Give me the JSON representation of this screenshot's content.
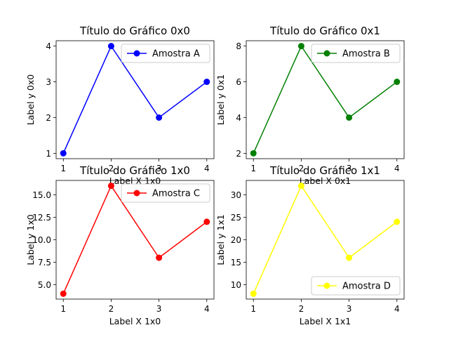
{
  "chart_data": [
    {
      "type": "line",
      "title": "Título do Gráfico 0x0",
      "xlabel": "Label X 1x0",
      "ylabel": "Label y 0x0",
      "x": [
        1,
        2,
        3,
        4
      ],
      "xticks": [
        "1",
        "2",
        "3",
        "4"
      ],
      "yticks": [
        1,
        2,
        3,
        4
      ],
      "ytick_labels": [
        "1",
        "2",
        "3",
        "4"
      ],
      "ylim": [
        0.85,
        4.15
      ],
      "series": [
        {
          "name": "Amostra A",
          "values": [
            1,
            4,
            2,
            3
          ],
          "color": "#0000ff"
        }
      ],
      "legend": "upper right",
      "grid": false
    },
    {
      "type": "line",
      "title": "Título do Gráfico 0x1",
      "xlabel": "Label X 0x1",
      "ylabel": "Label y 0x1",
      "x": [
        1,
        2,
        3,
        4
      ],
      "xticks": [
        "1",
        "2",
        "3",
        "4"
      ],
      "yticks": [
        2,
        4,
        6,
        8
      ],
      "ytick_labels": [
        "2",
        "4",
        "6",
        "8"
      ],
      "ylim": [
        1.7,
        8.3
      ],
      "series": [
        {
          "name": "Amostra B",
          "values": [
            2,
            8,
            4,
            6
          ],
          "color": "#008000"
        }
      ],
      "legend": "upper right",
      "grid": false
    },
    {
      "type": "line",
      "title": "Título do Gráfico 1x0",
      "xlabel": "Label X 1x0",
      "ylabel": "Label y 1x0",
      "x": [
        1,
        2,
        3,
        4
      ],
      "xticks": [
        "1",
        "2",
        "3",
        "4"
      ],
      "yticks": [
        5,
        7.5,
        10,
        12.5,
        15
      ],
      "ytick_labels": [
        "5.0",
        "7.5",
        "10.0",
        "12.5",
        "15.0"
      ],
      "ylim": [
        3.4,
        16.6
      ],
      "series": [
        {
          "name": "Amostra C",
          "values": [
            4,
            16,
            8,
            12
          ],
          "color": "#ff0000"
        }
      ],
      "legend": "upper right",
      "grid": false
    },
    {
      "type": "line",
      "title": "Título do Gráfico 1x1",
      "xlabel": "Label X 1x1",
      "ylabel": "Label y 1x1",
      "x": [
        1,
        2,
        3,
        4
      ],
      "xticks": [
        "1",
        "2",
        "3",
        "4"
      ],
      "yticks": [
        10,
        15,
        20,
        25,
        30
      ],
      "ytick_labels": [
        "10",
        "15",
        "20",
        "25",
        "30"
      ],
      "ylim": [
        6.8,
        33.2
      ],
      "series": [
        {
          "name": "Amostra D",
          "values": [
            8,
            32,
            16,
            24
          ],
          "color": "#ffff00"
        }
      ],
      "legend": "lower right",
      "grid": false
    }
  ]
}
